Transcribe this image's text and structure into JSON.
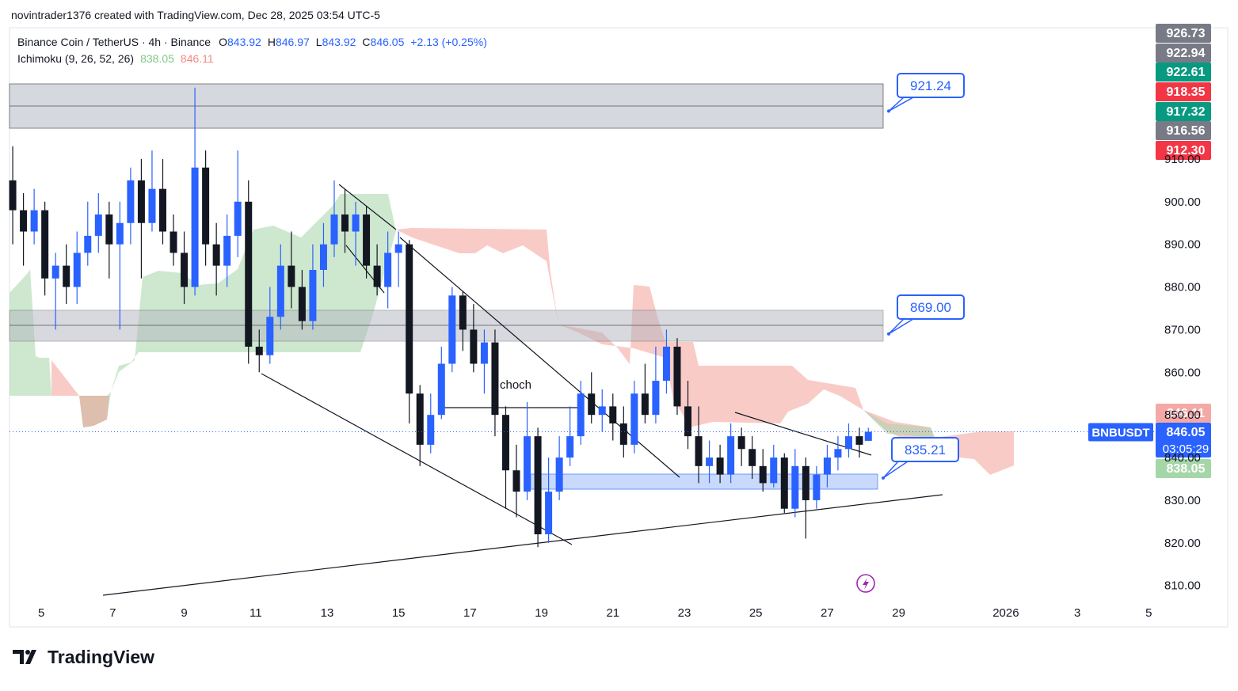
{
  "chart_data": {
    "type": "candlestick",
    "header": "novintrader1376 created with TradingView.com, Dec 28, 2025 03:54 UTC-5",
    "symbol": "Binance Coin / TetherUS · 4h · Binance",
    "ohlc": [
      {
        "key": "O",
        "value": 843.92
      },
      {
        "key": "H",
        "value": 846.97
      },
      {
        "key": "L",
        "value": 843.92
      },
      {
        "key": "C",
        "value": 846.05
      }
    ],
    "change": "+2.13 (+0.25%)",
    "indicator": {
      "name": "Ichimoku (9, 26, 52, 26)",
      "values": [
        838.05,
        846.11
      ],
      "colors": [
        "#81c784",
        "#f28b82"
      ]
    },
    "ticker": "BNBUSDT",
    "annotation": "choch",
    "brand": "TradingView",
    "up_color": "#2962ff",
    "down_color": "#131722",
    "xlim": [
      4.11,
      36.17
    ],
    "xticks": [
      5,
      7,
      9,
      11,
      13,
      15,
      17,
      19,
      21,
      23,
      25,
      27,
      29,
      {
        "value": 32,
        "label": "2026"
      },
      {
        "value": 34,
        "label": "3"
      },
      {
        "value": 36,
        "label": "5"
      }
    ],
    "ylim": [
      805.3,
      940.8
    ],
    "yticks": [
      {
        "value": 810,
        "label": "810.00"
      },
      {
        "value": 820,
        "label": "820.00"
      },
      {
        "value": 830,
        "label": "830.00"
      },
      {
        "value": 840,
        "label": "840.00"
      },
      {
        "value": 850,
        "label": "850.00"
      },
      {
        "value": 860,
        "label": "860.00"
      },
      {
        "value": 870,
        "label": "870.00"
      },
      {
        "value": 880,
        "label": "880.00"
      },
      {
        "value": 890,
        "label": "890.00"
      },
      {
        "value": 900,
        "label": "900.00"
      },
      {
        "value": 910,
        "label": "910.00"
      }
    ],
    "last_price": 846.05,
    "price_tags": [
      {
        "value": 926.73,
        "label": "926.73",
        "color": "#787b86"
      },
      {
        "value": 922.94,
        "label": "922.94",
        "color": "#787b86"
      },
      {
        "value": 922.61,
        "label": "922.61",
        "color": "#089981"
      },
      {
        "value": 918.35,
        "label": "918.35",
        "color": "#f23645"
      },
      {
        "value": 917.32,
        "label": "917.32",
        "color": "#089981"
      },
      {
        "value": 916.56,
        "label": "916.56",
        "color": "#787b86"
      },
      {
        "value": 912.3,
        "label": "912.30",
        "color": "#f23645"
      },
      {
        "value": 846.11,
        "label": "846.11",
        "color": "#f4a9a6"
      },
      {
        "value": 846.05,
        "label": "846.05",
        "color": "#2962ff",
        "timer": "03:05:29"
      },
      {
        "value": 838.05,
        "label": "838.05",
        "color": "#a5d6a7"
      }
    ],
    "callouts": [
      {
        "value": 921.24,
        "label": "921.24"
      },
      {
        "value": 869,
        "label": "869.00"
      },
      {
        "value": 835.21,
        "label": "835.21"
      }
    ],
    "candles": [
      {
        "x": 4.2,
        "open": 905,
        "high": 913,
        "low": 890,
        "close": 898
      },
      {
        "x": 4.5,
        "open": 898,
        "high": 902,
        "low": 885,
        "close": 893
      },
      {
        "x": 4.8,
        "open": 893,
        "high": 903,
        "low": 890,
        "close": 898
      },
      {
        "x": 5.1,
        "open": 898,
        "high": 900,
        "low": 878,
        "close": 882
      },
      {
        "x": 5.4,
        "open": 882,
        "high": 888,
        "low": 870,
        "close": 885
      },
      {
        "x": 5.7,
        "open": 885,
        "high": 890,
        "low": 876,
        "close": 880
      },
      {
        "x": 6.0,
        "open": 880,
        "high": 893,
        "low": 876,
        "close": 888
      },
      {
        "x": 6.3,
        "open": 888,
        "high": 900,
        "low": 885,
        "close": 892
      },
      {
        "x": 6.6,
        "open": 892,
        "high": 902,
        "low": 888,
        "close": 897
      },
      {
        "x": 6.9,
        "open": 897,
        "high": 900,
        "low": 882,
        "close": 890
      },
      {
        "x": 7.2,
        "open": 890,
        "high": 900,
        "low": 870,
        "close": 895
      },
      {
        "x": 7.5,
        "open": 895,
        "high": 908,
        "low": 890,
        "close": 905
      },
      {
        "x": 7.8,
        "open": 905,
        "high": 910,
        "low": 882,
        "close": 895
      },
      {
        "x": 8.1,
        "open": 895,
        "high": 912,
        "low": 893,
        "close": 903
      },
      {
        "x": 8.4,
        "open": 903,
        "high": 910,
        "low": 890,
        "close": 893
      },
      {
        "x": 8.7,
        "open": 893,
        "high": 897,
        "low": 885,
        "close": 888
      },
      {
        "x": 9.0,
        "open": 888,
        "high": 893,
        "low": 876,
        "close": 880
      },
      {
        "x": 9.3,
        "open": 880,
        "high": 926.73,
        "low": 878,
        "close": 908
      },
      {
        "x": 9.6,
        "open": 908,
        "high": 912,
        "low": 885,
        "close": 890
      },
      {
        "x": 9.9,
        "open": 890,
        "high": 895,
        "low": 878,
        "close": 885
      },
      {
        "x": 10.2,
        "open": 885,
        "high": 897,
        "low": 880,
        "close": 892
      },
      {
        "x": 10.5,
        "open": 892,
        "high": 912,
        "low": 887,
        "close": 900
      },
      {
        "x": 10.8,
        "open": 900,
        "high": 905,
        "low": 862,
        "close": 866
      },
      {
        "x": 11.1,
        "open": 866,
        "high": 870,
        "low": 860,
        "close": 864
      },
      {
        "x": 11.4,
        "open": 864,
        "high": 880,
        "low": 862,
        "close": 873
      },
      {
        "x": 11.7,
        "open": 873,
        "high": 890,
        "low": 870,
        "close": 885
      },
      {
        "x": 12.0,
        "open": 885,
        "high": 893,
        "low": 875,
        "close": 880
      },
      {
        "x": 12.3,
        "open": 880,
        "high": 884,
        "low": 870,
        "close": 872
      },
      {
        "x": 12.6,
        "open": 872,
        "high": 890,
        "low": 870,
        "close": 884
      },
      {
        "x": 12.9,
        "open": 884,
        "high": 895,
        "low": 880,
        "close": 890
      },
      {
        "x": 13.2,
        "open": 890,
        "high": 905,
        "low": 887,
        "close": 897
      },
      {
        "x": 13.5,
        "open": 897,
        "high": 903,
        "low": 888,
        "close": 893
      },
      {
        "x": 13.8,
        "open": 893,
        "high": 900,
        "low": 885,
        "close": 897
      },
      {
        "x": 14.1,
        "open": 897,
        "high": 899,
        "low": 882,
        "close": 885
      },
      {
        "x": 14.4,
        "open": 885,
        "high": 890,
        "low": 878,
        "close": 880
      },
      {
        "x": 14.7,
        "open": 880,
        "high": 893,
        "low": 875,
        "close": 888
      },
      {
        "x": 15.0,
        "open": 888,
        "high": 893,
        "low": 880,
        "close": 890
      },
      {
        "x": 15.3,
        "open": 890,
        "high": 891,
        "low": 848,
        "close": 855
      },
      {
        "x": 15.6,
        "open": 855,
        "high": 857,
        "low": 838,
        "close": 843
      },
      {
        "x": 15.9,
        "open": 843,
        "high": 855,
        "low": 841,
        "close": 850
      },
      {
        "x": 16.2,
        "open": 850,
        "high": 866,
        "low": 849,
        "close": 862
      },
      {
        "x": 16.5,
        "open": 862,
        "high": 880,
        "low": 860,
        "close": 878
      },
      {
        "x": 16.8,
        "open": 878,
        "high": 879,
        "low": 865,
        "close": 870
      },
      {
        "x": 17.1,
        "open": 870,
        "high": 876,
        "low": 860,
        "close": 862
      },
      {
        "x": 17.4,
        "open": 862,
        "high": 870,
        "low": 855,
        "close": 867
      },
      {
        "x": 17.7,
        "open": 867,
        "high": 870,
        "low": 845,
        "close": 850
      },
      {
        "x": 18.0,
        "open": 850,
        "high": 852,
        "low": 828,
        "close": 837
      },
      {
        "x": 18.3,
        "open": 837,
        "high": 843,
        "low": 826,
        "close": 832
      },
      {
        "x": 18.6,
        "open": 832,
        "high": 853,
        "low": 830,
        "close": 845
      },
      {
        "x": 18.9,
        "open": 845,
        "high": 847,
        "low": 819,
        "close": 822
      },
      {
        "x": 19.2,
        "open": 822,
        "high": 840,
        "low": 820,
        "close": 832
      },
      {
        "x": 19.5,
        "open": 832,
        "high": 845,
        "low": 830,
        "close": 840
      },
      {
        "x": 19.8,
        "open": 840,
        "high": 852,
        "low": 838,
        "close": 845
      },
      {
        "x": 20.1,
        "open": 845,
        "high": 858,
        "low": 843,
        "close": 855
      },
      {
        "x": 20.4,
        "open": 855,
        "high": 860,
        "low": 848,
        "close": 850
      },
      {
        "x": 20.7,
        "open": 850,
        "high": 856,
        "low": 846,
        "close": 852
      },
      {
        "x": 21.0,
        "open": 852,
        "high": 855,
        "low": 844,
        "close": 848
      },
      {
        "x": 21.3,
        "open": 848,
        "high": 852,
        "low": 840,
        "close": 843
      },
      {
        "x": 21.6,
        "open": 843,
        "high": 858,
        "low": 841,
        "close": 855
      },
      {
        "x": 21.9,
        "open": 855,
        "high": 862,
        "low": 848,
        "close": 850
      },
      {
        "x": 22.2,
        "open": 850,
        "high": 866,
        "low": 848,
        "close": 858
      },
      {
        "x": 22.5,
        "open": 858,
        "high": 870,
        "low": 855,
        "close": 866
      },
      {
        "x": 22.8,
        "open": 866,
        "high": 868,
        "low": 850,
        "close": 852
      },
      {
        "x": 23.1,
        "open": 852,
        "high": 858,
        "low": 842,
        "close": 845
      },
      {
        "x": 23.4,
        "open": 845,
        "high": 852,
        "low": 834,
        "close": 838
      },
      {
        "x": 23.7,
        "open": 838,
        "high": 844,
        "low": 834,
        "close": 840
      },
      {
        "x": 24.0,
        "open": 840,
        "high": 843,
        "low": 834,
        "close": 836
      },
      {
        "x": 24.3,
        "open": 836,
        "high": 848,
        "low": 834,
        "close": 845
      },
      {
        "x": 24.6,
        "open": 845,
        "high": 847,
        "low": 838,
        "close": 842
      },
      {
        "x": 24.9,
        "open": 842,
        "high": 845,
        "low": 835,
        "close": 838
      },
      {
        "x": 25.2,
        "open": 838,
        "high": 842,
        "low": 832,
        "close": 834
      },
      {
        "x": 25.5,
        "open": 834,
        "high": 843,
        "low": 833,
        "close": 840
      },
      {
        "x": 25.8,
        "open": 840,
        "high": 841,
        "low": 827,
        "close": 828
      },
      {
        "x": 26.1,
        "open": 828,
        "high": 842,
        "low": 826,
        "close": 838
      },
      {
        "x": 26.4,
        "open": 838,
        "high": 840,
        "low": 821,
        "close": 830
      },
      {
        "x": 26.7,
        "open": 830,
        "high": 838,
        "low": 828,
        "close": 836
      },
      {
        "x": 27.0,
        "open": 836,
        "high": 843,
        "low": 833,
        "close": 840
      },
      {
        "x": 27.3,
        "open": 840,
        "high": 845,
        "low": 837,
        "close": 842
      },
      {
        "x": 27.6,
        "open": 842,
        "high": 848,
        "low": 840,
        "close": 845
      },
      {
        "x": 27.9,
        "open": 845,
        "high": 847,
        "low": 840,
        "close": 843
      },
      {
        "x": 28.15,
        "open": 843.92,
        "high": 846.97,
        "low": 843.92,
        "close": 846.05
      }
    ]
  }
}
